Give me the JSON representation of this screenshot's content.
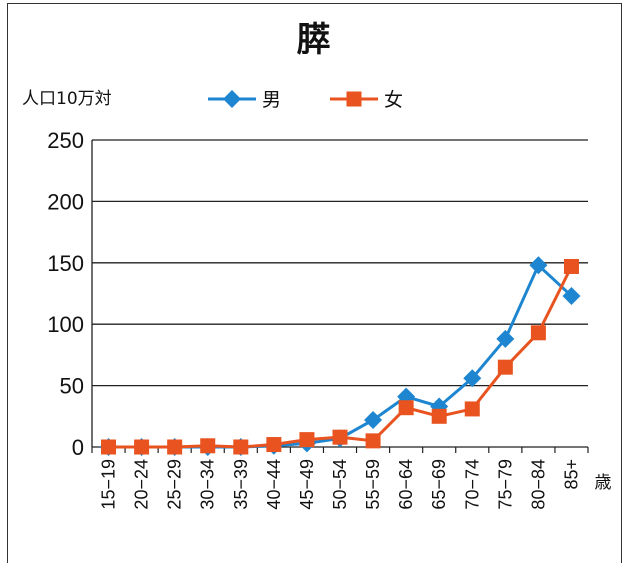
{
  "chart_data": {
    "type": "line",
    "title": "膵",
    "ylabel": "人口10万対",
    "xlabel": "歳",
    "ylim": [
      0,
      250
    ],
    "yticks": [
      0,
      50,
      100,
      150,
      200,
      250
    ],
    "grid": true,
    "legend_position": "top-center",
    "categories": [
      "15−19",
      "20−24",
      "25−29",
      "30−34",
      "35−39",
      "40−44",
      "45−49",
      "50−54",
      "55−59",
      "60−64",
      "65−69",
      "70−74",
      "75−79",
      "80−84",
      "85+"
    ],
    "series": [
      {
        "name": "男",
        "color": "#1e86d0",
        "marker": "diamond",
        "values": [
          0,
          0,
          0,
          0,
          0,
          1,
          3,
          7,
          22,
          41,
          33,
          56,
          88,
          148,
          123
        ]
      },
      {
        "name": "女",
        "color": "#e8531f",
        "marker": "square",
        "values": [
          0,
          0,
          0,
          1,
          0,
          2,
          6,
          8,
          5,
          32,
          25,
          31,
          65,
          93,
          147
        ]
      }
    ]
  }
}
